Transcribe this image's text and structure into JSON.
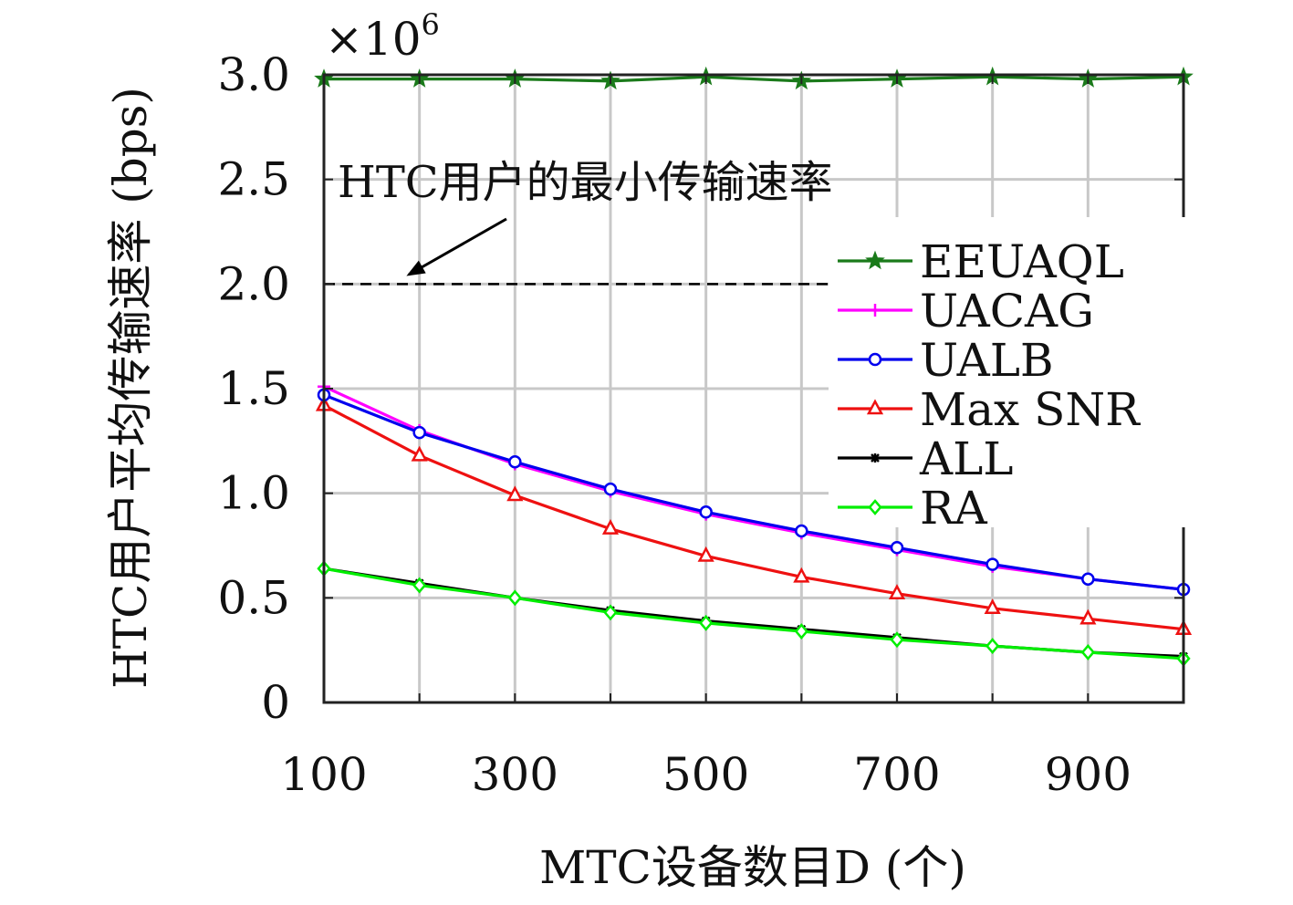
{
  "chart_data": {
    "type": "line",
    "title": "",
    "xlabel": "MTC设备数目D (个)",
    "ylabel": "HTC用户平均传输速率 (bps)",
    "y_multiplier": "×10",
    "y_multiplier_exponent": "6",
    "xlim": [
      100,
      1000
    ],
    "ylim": [
      0,
      3.0
    ],
    "grid": true,
    "legend_position": "right",
    "x": [
      100,
      200,
      300,
      400,
      500,
      600,
      700,
      800,
      900,
      1000
    ],
    "x_ticks": [
      100,
      300,
      500,
      700,
      900
    ],
    "x_tick_labels": [
      "100",
      "300",
      "500",
      "700",
      "900"
    ],
    "y_ticks": [
      0,
      0.5,
      1.0,
      1.5,
      2.0,
      2.5,
      3.0
    ],
    "y_tick_labels": [
      "0",
      "0.5",
      "1.0",
      "1.5",
      "2.0",
      "2.5",
      "3.0"
    ],
    "series": [
      {
        "name": "EEUAQL",
        "color": "#1a7a1a",
        "marker": "star",
        "values": [
          2.98,
          2.98,
          2.98,
          2.97,
          2.99,
          2.97,
          2.98,
          2.99,
          2.98,
          2.99
        ]
      },
      {
        "name": "UACAG",
        "color": "#ff00ff",
        "marker": "plus",
        "values": [
          1.51,
          1.3,
          1.14,
          1.01,
          0.9,
          0.81,
          0.73,
          0.65,
          0.59,
          0.54
        ]
      },
      {
        "name": "UALB",
        "color": "#0000ee",
        "marker": "circle",
        "values": [
          1.47,
          1.29,
          1.15,
          1.02,
          0.91,
          0.82,
          0.74,
          0.66,
          0.59,
          0.54
        ]
      },
      {
        "name": "Max SNR",
        "color": "#ee1111",
        "marker": "triangle",
        "values": [
          1.42,
          1.18,
          0.99,
          0.83,
          0.7,
          0.6,
          0.52,
          0.45,
          0.4,
          0.35
        ]
      },
      {
        "name": "ALL",
        "color": "#000000",
        "marker": "asterisk",
        "values": [
          0.64,
          0.57,
          0.5,
          0.44,
          0.39,
          0.35,
          0.31,
          0.27,
          0.24,
          0.22
        ]
      },
      {
        "name": "RA",
        "color": "#00ee00",
        "marker": "diamond",
        "values": [
          0.64,
          0.56,
          0.5,
          0.43,
          0.38,
          0.34,
          0.3,
          0.27,
          0.24,
          0.21
        ]
      }
    ],
    "reference_line": {
      "y": 2.0,
      "style": "dashed",
      "color": "#000000"
    },
    "annotation": {
      "text": "HTC用户的最小传输速率",
      "points_to": {
        "x": 180,
        "y": 2.0
      }
    }
  }
}
